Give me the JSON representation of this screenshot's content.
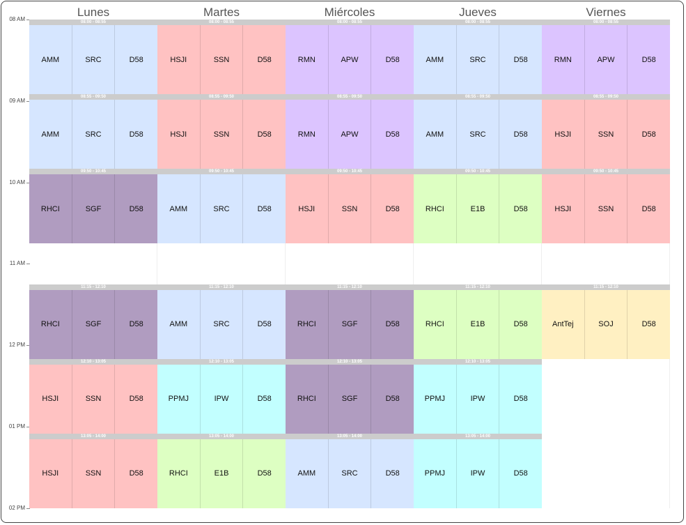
{
  "days": [
    "Lunes",
    "Martes",
    "Miércoles",
    "Jueves",
    "Viernes"
  ],
  "hours": [
    {
      "label": "08 AM",
      "hour": 8
    },
    {
      "label": "09 AM",
      "hour": 9
    },
    {
      "label": "10 AM",
      "hour": 10
    },
    {
      "label": "11 AM",
      "hour": 11
    },
    {
      "label": "12 PM",
      "hour": 12
    },
    {
      "label": "01 PM",
      "hour": 13
    },
    {
      "label": "02 PM",
      "hour": 14
    }
  ],
  "colors": {
    "blue": "#d6e6ff",
    "red": "#ffc2c2",
    "lavender": "#dcc4ff",
    "purple": "#b09cc0",
    "green": "#ddffc2",
    "cyan": "#c2ffff",
    "yellow": "#fff0c2"
  },
  "events": [
    {
      "day": 0,
      "time": "08:00 - 08:55",
      "start": "08:00",
      "end": "08:55",
      "color": "blue",
      "items": [
        "AMM",
        "SRC",
        "D58"
      ]
    },
    {
      "day": 0,
      "time": "08:55 - 09:50",
      "start": "08:55",
      "end": "09:50",
      "color": "blue",
      "items": [
        "AMM",
        "SRC",
        "D58"
      ]
    },
    {
      "day": 0,
      "time": "09:50 - 10:45",
      "start": "09:50",
      "end": "10:45",
      "color": "purple",
      "items": [
        "RHCI",
        "SGF",
        "D58"
      ]
    },
    {
      "day": 0,
      "time": "11:15 - 12:10",
      "start": "11:15",
      "end": "12:10",
      "color": "purple",
      "items": [
        "RHCI",
        "SGF",
        "D58"
      ]
    },
    {
      "day": 0,
      "time": "12:10 - 13:05",
      "start": "12:10",
      "end": "13:05",
      "color": "red",
      "items": [
        "HSJI",
        "SSN",
        "D58"
      ]
    },
    {
      "day": 0,
      "time": "13:05 - 14:00",
      "start": "13:05",
      "end": "14:00",
      "color": "red",
      "items": [
        "HSJI",
        "SSN",
        "D58"
      ]
    },
    {
      "day": 1,
      "time": "08:00 - 08:55",
      "start": "08:00",
      "end": "08:55",
      "color": "red",
      "items": [
        "HSJI",
        "SSN",
        "D58"
      ]
    },
    {
      "day": 1,
      "time": "08:55 - 09:50",
      "start": "08:55",
      "end": "09:50",
      "color": "red",
      "items": [
        "HSJI",
        "SSN",
        "D58"
      ]
    },
    {
      "day": 1,
      "time": "09:50 - 10:45",
      "start": "09:50",
      "end": "10:45",
      "color": "blue",
      "items": [
        "AMM",
        "SRC",
        "D58"
      ]
    },
    {
      "day": 1,
      "time": "11:15 - 12:10",
      "start": "11:15",
      "end": "12:10",
      "color": "blue",
      "items": [
        "AMM",
        "SRC",
        "D58"
      ]
    },
    {
      "day": 1,
      "time": "12:10 - 13:05",
      "start": "12:10",
      "end": "13:05",
      "color": "cyan",
      "items": [
        "PPMJ",
        "IPW",
        "D58"
      ]
    },
    {
      "day": 1,
      "time": "13:05 - 14:00",
      "start": "13:05",
      "end": "14:00",
      "color": "green",
      "items": [
        "RHCI",
        "E1B",
        "D58"
      ]
    },
    {
      "day": 2,
      "time": "08:00 - 08:55",
      "start": "08:00",
      "end": "08:55",
      "color": "lavender",
      "items": [
        "RMN",
        "APW",
        "D58"
      ]
    },
    {
      "day": 2,
      "time": "08:55 - 09:50",
      "start": "08:55",
      "end": "09:50",
      "color": "lavender",
      "items": [
        "RMN",
        "APW",
        "D58"
      ]
    },
    {
      "day": 2,
      "time": "09:50 - 10:45",
      "start": "09:50",
      "end": "10:45",
      "color": "red",
      "items": [
        "HSJI",
        "SSN",
        "D58"
      ]
    },
    {
      "day": 2,
      "time": "11:15 - 12:10",
      "start": "11:15",
      "end": "12:10",
      "color": "purple",
      "items": [
        "RHCI",
        "SGF",
        "D58"
      ]
    },
    {
      "day": 2,
      "time": "12:10 - 13:05",
      "start": "12:10",
      "end": "13:05",
      "color": "purple",
      "items": [
        "RHCI",
        "SGF",
        "D58"
      ]
    },
    {
      "day": 2,
      "time": "13:05 - 14:00",
      "start": "13:05",
      "end": "14:00",
      "color": "blue",
      "items": [
        "AMM",
        "SRC",
        "D58"
      ]
    },
    {
      "day": 3,
      "time": "08:00 - 08:55",
      "start": "08:00",
      "end": "08:55",
      "color": "blue",
      "items": [
        "AMM",
        "SRC",
        "D58"
      ]
    },
    {
      "day": 3,
      "time": "08:55 - 09:50",
      "start": "08:55",
      "end": "09:50",
      "color": "blue",
      "items": [
        "AMM",
        "SRC",
        "D58"
      ]
    },
    {
      "day": 3,
      "time": "09:50 - 10:45",
      "start": "09:50",
      "end": "10:45",
      "color": "green",
      "items": [
        "RHCI",
        "E1B",
        "D58"
      ]
    },
    {
      "day": 3,
      "time": "11:15 - 12:10",
      "start": "11:15",
      "end": "12:10",
      "color": "green",
      "items": [
        "RHCI",
        "E1B",
        "D58"
      ]
    },
    {
      "day": 3,
      "time": "12:10 - 13:05",
      "start": "12:10",
      "end": "13:05",
      "color": "cyan",
      "items": [
        "PPMJ",
        "IPW",
        "D58"
      ]
    },
    {
      "day": 3,
      "time": "13:05 - 14:00",
      "start": "13:05",
      "end": "14:00",
      "color": "cyan",
      "items": [
        "PPMJ",
        "IPW",
        "D58"
      ]
    },
    {
      "day": 4,
      "time": "08:00 - 08:55",
      "start": "08:00",
      "end": "08:55",
      "color": "lavender",
      "items": [
        "RMN",
        "APW",
        "D58"
      ]
    },
    {
      "day": 4,
      "time": "08:55 - 09:50",
      "start": "08:55",
      "end": "09:50",
      "color": "red",
      "items": [
        "HSJI",
        "SSN",
        "D58"
      ]
    },
    {
      "day": 4,
      "time": "09:50 - 10:45",
      "start": "09:50",
      "end": "10:45",
      "color": "red",
      "items": [
        "HSJI",
        "SSN",
        "D58"
      ]
    },
    {
      "day": 4,
      "time": "11:15 - 12:10",
      "start": "11:15",
      "end": "12:10",
      "color": "yellow",
      "items": [
        "AntTej",
        "SOJ",
        "D58"
      ]
    }
  ]
}
